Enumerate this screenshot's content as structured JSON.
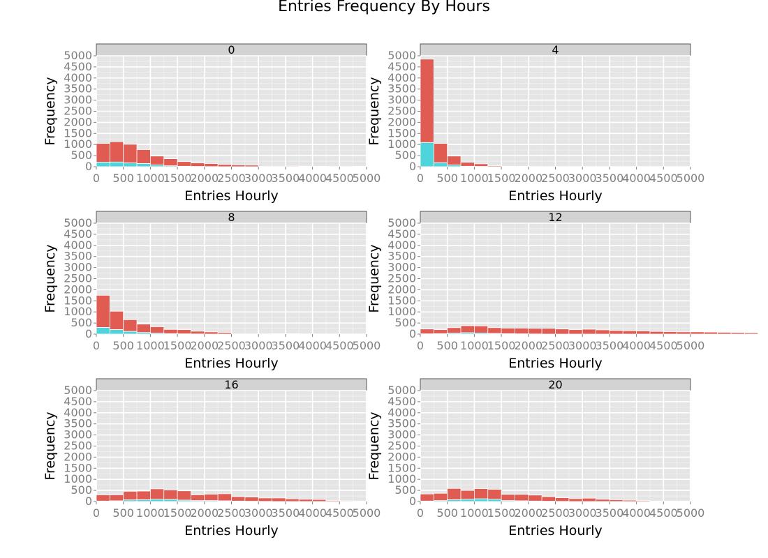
{
  "chart_data": {
    "type": "bar",
    "subtype": "stacked-histogram-facets",
    "title": "Entries Frequency By Hours",
    "xlabel": "Entries Hourly",
    "ylabel": "Frequency",
    "xlim": [
      0,
      5000
    ],
    "ylim": [
      0,
      5000
    ],
    "bin_width": 250,
    "x_ticks": [
      "0",
      "500",
      "1000",
      "1500",
      "2000",
      "2500",
      "3000",
      "3500",
      "4000",
      "4500",
      "5000"
    ],
    "y_ticks": [
      "0",
      "500",
      "1000",
      "1500",
      "2000",
      "2500",
      "3000",
      "3500",
      "4000",
      "4500",
      "5000"
    ],
    "colors": {
      "red": "#e05c52",
      "cyan": "#4fd4db",
      "panel_bg": "#e5e5e5",
      "strip_bg": "#d3d3d3",
      "grid": "#ffffff"
    },
    "series_names": [
      "red",
      "cyan"
    ],
    "facets": [
      {
        "label": "0",
        "red": [
          1050,
          1130,
          1010,
          770,
          480,
          360,
          230,
          170,
          140,
          100,
          80,
          70,
          0,
          0,
          30,
          25,
          20,
          0,
          0,
          20,
          15,
          10,
          0,
          0,
          0
        ],
        "cyan": [
          200,
          210,
          170,
          140,
          80,
          40,
          20,
          10,
          5,
          0,
          0,
          0,
          0,
          0,
          0,
          0,
          0,
          0,
          0,
          0,
          0,
          0,
          0,
          0,
          0
        ]
      },
      {
        "label": "4",
        "red": [
          4850,
          1050,
          480,
          200,
          130,
          40,
          20,
          10,
          0,
          0,
          0,
          0,
          0,
          0,
          0,
          0,
          0,
          0,
          0,
          0,
          0,
          0,
          0,
          0,
          0
        ],
        "cyan": [
          1090,
          180,
          80,
          20,
          10,
          0,
          0,
          0,
          0,
          0,
          0,
          0,
          0,
          0,
          0,
          0,
          0,
          0,
          0,
          0,
          0,
          0,
          0,
          0,
          0
        ]
      },
      {
        "label": "8",
        "red": [
          1750,
          1030,
          650,
          450,
          330,
          210,
          200,
          130,
          100,
          70,
          0,
          0,
          0,
          20,
          15,
          0,
          0,
          0,
          0,
          0,
          0,
          0,
          0,
          0,
          0
        ],
        "cyan": [
          300,
          200,
          120,
          70,
          40,
          20,
          10,
          5,
          0,
          0,
          0,
          0,
          0,
          0,
          0,
          0,
          0,
          0,
          0,
          0,
          0,
          0,
          0,
          0,
          0
        ]
      },
      {
        "label": "12",
        "red": [
          230,
          200,
          290,
          380,
          370,
          290,
          270,
          270,
          260,
          260,
          230,
          200,
          220,
          190,
          160,
          150,
          140,
          120,
          110,
          100,
          100,
          90,
          80,
          70,
          60
        ],
        "cyan": [
          10,
          20,
          40,
          60,
          50,
          30,
          20,
          10,
          5,
          0,
          0,
          0,
          0,
          0,
          0,
          0,
          0,
          0,
          0,
          0,
          0,
          0,
          0,
          0,
          0
        ]
      },
      {
        "label": "16",
        "red": [
          300,
          300,
          460,
          470,
          570,
          520,
          480,
          300,
          330,
          350,
          220,
          200,
          160,
          160,
          120,
          100,
          90,
          40,
          30,
          20,
          15,
          10,
          20,
          15,
          10
        ],
        "cyan": [
          20,
          30,
          70,
          80,
          100,
          90,
          60,
          40,
          40,
          30,
          20,
          10,
          5,
          0,
          0,
          0,
          0,
          0,
          0,
          0,
          0,
          0,
          0,
          0,
          0
        ]
      },
      {
        "label": "20",
        "red": [
          340,
          370,
          590,
          500,
          580,
          550,
          320,
          320,
          290,
          220,
          170,
          130,
          150,
          100,
          80,
          60,
          40,
          20,
          20,
          15,
          10,
          20,
          15,
          10,
          10
        ],
        "cyan": [
          20,
          40,
          80,
          100,
          120,
          100,
          40,
          30,
          20,
          10,
          5,
          0,
          0,
          0,
          0,
          0,
          0,
          0,
          0,
          0,
          0,
          0,
          0,
          0,
          0
        ]
      }
    ]
  }
}
